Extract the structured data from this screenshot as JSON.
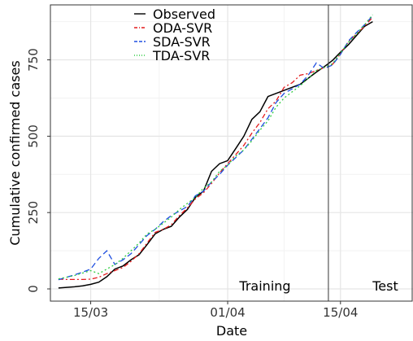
{
  "chart_data": {
    "type": "line",
    "xlabel": "Date",
    "ylabel": "Cumulative confirmed cases",
    "x_ticks": [
      "15/03",
      "01/04",
      "15/04"
    ],
    "y_ticks": [
      0,
      250,
      500,
      750
    ],
    "ylim": [
      -40,
      930
    ],
    "xlim_day_of_year": [
      70,
      115
    ],
    "grid": true,
    "legend_position": "top-left",
    "annotations": {
      "training": "Training",
      "test": "Test",
      "split_date": "13/04"
    },
    "series": [
      {
        "name": "Observed",
        "color": "#000000",
        "dash": "",
        "x": [
          "11/03",
          "12/03",
          "13/03",
          "14/03",
          "15/03",
          "16/03",
          "17/03",
          "18/03",
          "19/03",
          "20/03",
          "21/03",
          "22/03",
          "23/03",
          "24/03",
          "25/03",
          "26/03",
          "27/03",
          "28/03",
          "29/03",
          "30/03",
          "31/03",
          "01/04",
          "02/04",
          "03/04",
          "04/04",
          "05/04",
          "06/04",
          "07/04",
          "08/04",
          "09/04",
          "10/04",
          "11/04",
          "12/04",
          "13/04",
          "14/04",
          "15/04",
          "16/04",
          "17/04",
          "18/04",
          "19/04"
        ],
        "y": [
          3,
          5,
          7,
          10,
          15,
          22,
          40,
          65,
          75,
          95,
          112,
          145,
          180,
          195,
          205,
          235,
          260,
          300,
          320,
          385,
          410,
          420,
          460,
          500,
          555,
          580,
          630,
          640,
          650,
          660,
          670,
          690,
          710,
          728,
          748,
          775,
          800,
          830,
          860,
          875
        ]
      },
      {
        "name": "ODA-SVR",
        "color": "#e31a1c",
        "dash": "6,3,2,3",
        "x": [
          "11/03",
          "12/03",
          "13/03",
          "14/03",
          "15/03",
          "16/03",
          "17/03",
          "18/03",
          "19/03",
          "20/03",
          "21/03",
          "22/03",
          "23/03",
          "24/03",
          "25/03",
          "26/03",
          "27/03",
          "28/03",
          "29/03",
          "30/03",
          "31/03",
          "01/04",
          "02/04",
          "03/04",
          "04/04",
          "05/04",
          "06/04",
          "07/04",
          "08/04",
          "09/04",
          "10/04",
          "11/04",
          "12/04",
          "13/04",
          "14/04",
          "15/04",
          "16/04",
          "17/04",
          "18/04",
          "19/04"
        ],
        "y": [
          32,
          31,
          31,
          31,
          32,
          38,
          50,
          60,
          70,
          90,
          115,
          150,
          185,
          195,
          210,
          240,
          265,
          295,
          315,
          345,
          380,
          410,
          440,
          470,
          510,
          545,
          590,
          615,
          660,
          675,
          700,
          705,
          715,
          725,
          735,
          770,
          810,
          835,
          860,
          890
        ]
      },
      {
        "name": "SDA-SVR",
        "color": "#1f4fe0",
        "dash": "7,4",
        "x": [
          "11/03",
          "12/03",
          "13/03",
          "14/03",
          "15/03",
          "16/03",
          "17/03",
          "18/03",
          "19/03",
          "20/03",
          "21/03",
          "22/03",
          "23/03",
          "24/03",
          "25/03",
          "26/03",
          "27/03",
          "28/03",
          "29/03",
          "30/03",
          "31/03",
          "01/04",
          "02/04",
          "03/04",
          "04/04",
          "05/04",
          "06/04",
          "07/04",
          "08/04",
          "09/04",
          "10/04",
          "11/04",
          "12/04",
          "13/04",
          "14/04",
          "15/04",
          "16/04",
          "17/04",
          "18/04",
          "19/04"
        ],
        "y": [
          30,
          38,
          46,
          55,
          65,
          100,
          125,
          80,
          95,
          115,
          145,
          175,
          195,
          220,
          240,
          255,
          270,
          305,
          320,
          350,
          375,
          405,
          430,
          455,
          490,
          525,
          560,
          610,
          640,
          655,
          670,
          700,
          740,
          722,
          733,
          768,
          812,
          840,
          865,
          895
        ]
      },
      {
        "name": "TDA-SVR",
        "color": "#2ecc40",
        "dash": "2,3",
        "x": [
          "11/03",
          "12/03",
          "13/03",
          "14/03",
          "15/03",
          "16/03",
          "17/03",
          "18/03",
          "19/03",
          "20/03",
          "21/03",
          "22/03",
          "23/03",
          "24/03",
          "25/03",
          "26/03",
          "27/03",
          "28/03",
          "29/03",
          "30/03",
          "31/03",
          "01/04",
          "02/04",
          "03/04",
          "04/04",
          "05/04",
          "06/04",
          "07/04",
          "08/04",
          "09/04",
          "10/04",
          "11/04",
          "12/04",
          "13/04",
          "14/04",
          "15/04",
          "16/04",
          "17/04",
          "18/04",
          "19/04"
        ],
        "y": [
          33,
          38,
          44,
          52,
          60,
          50,
          65,
          80,
          100,
          125,
          150,
          180,
          195,
          215,
          235,
          260,
          280,
          300,
          330,
          350,
          385,
          405,
          435,
          455,
          485,
          520,
          550,
          595,
          625,
          645,
          665,
          690,
          715,
          726,
          737,
          772,
          808,
          835,
          865,
          898
        ]
      }
    ]
  }
}
